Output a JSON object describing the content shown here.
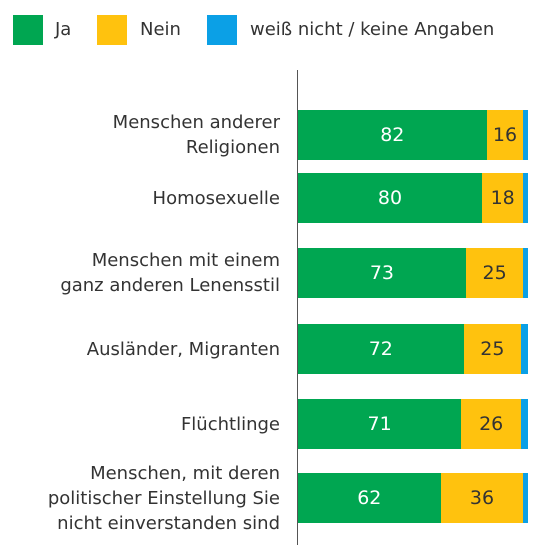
{
  "chart_data": {
    "type": "stacked-bar-horizontal",
    "categories": [
      "Menschen anderer\nReligionen",
      "Homosexuelle",
      "Menschen mit einem\nganz anderen Lenensstil",
      "Ausländer, Migranten",
      "Flüchtlinge",
      "Menschen, mit deren\npolitischer Einstellung Sie\nnicht einverstanden sind"
    ],
    "series": [
      {
        "name": "Ja",
        "color": "#00a651",
        "values": [
          82,
          80,
          73,
          72,
          71,
          62
        ]
      },
      {
        "name": "Nein",
        "color": "#ffc20e",
        "values": [
          16,
          18,
          25,
          25,
          26,
          36
        ]
      },
      {
        "name": "weiß nicht / keine Angaben",
        "color": "#0ba0e6",
        "values": [
          2,
          2,
          2,
          3,
          3,
          2
        ]
      }
    ],
    "xlim": [
      0,
      100
    ],
    "legend": "top"
  }
}
